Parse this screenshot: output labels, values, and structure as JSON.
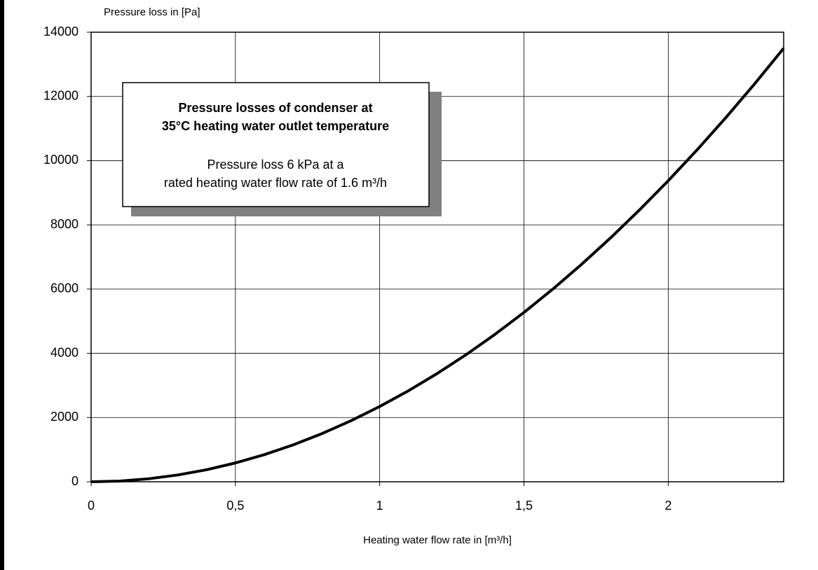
{
  "chart_data": {
    "type": "line",
    "y_label": "Pressure loss in [Pa]",
    "x_label": "Heating water flow rate in [m³/h]",
    "annotation": {
      "title": [
        "Pressure losses of condenser at",
        "35°C heating water outlet temperature"
      ],
      "text": [
        "Pressure loss 6 kPa at a",
        "rated heating water flow rate of 1.6 m³/h"
      ]
    },
    "x": [
      0,
      0.1,
      0.2,
      0.3,
      0.4,
      0.5,
      0.6,
      0.7,
      0.8,
      0.9,
      1,
      1.1,
      1.2,
      1.3,
      1.4,
      1.5,
      1.6,
      1.7,
      1.8,
      1.9,
      2,
      2.1,
      2.2,
      2.3,
      2.4
    ],
    "values": [
      0,
      23,
      94,
      211,
      375,
      586,
      844,
      1148,
      1500,
      1898,
      2344,
      2836,
      3375,
      3961,
      4594,
      5273,
      6000,
      6773,
      7594,
      8461,
      9375,
      10336,
      11344,
      12398,
      13500
    ],
    "color": "#000000",
    "xlim": [
      0,
      2.4
    ],
    "xticks": [
      0,
      {
        "value": 0.5,
        "label": "0,5"
      },
      1,
      {
        "value": 1.5,
        "label": "1,5"
      },
      2
    ],
    "ylim": [
      0,
      14000
    ],
    "yticks": [
      0,
      2000,
      4000,
      6000,
      8000,
      10000,
      12000,
      14000
    ],
    "grid": true
  }
}
